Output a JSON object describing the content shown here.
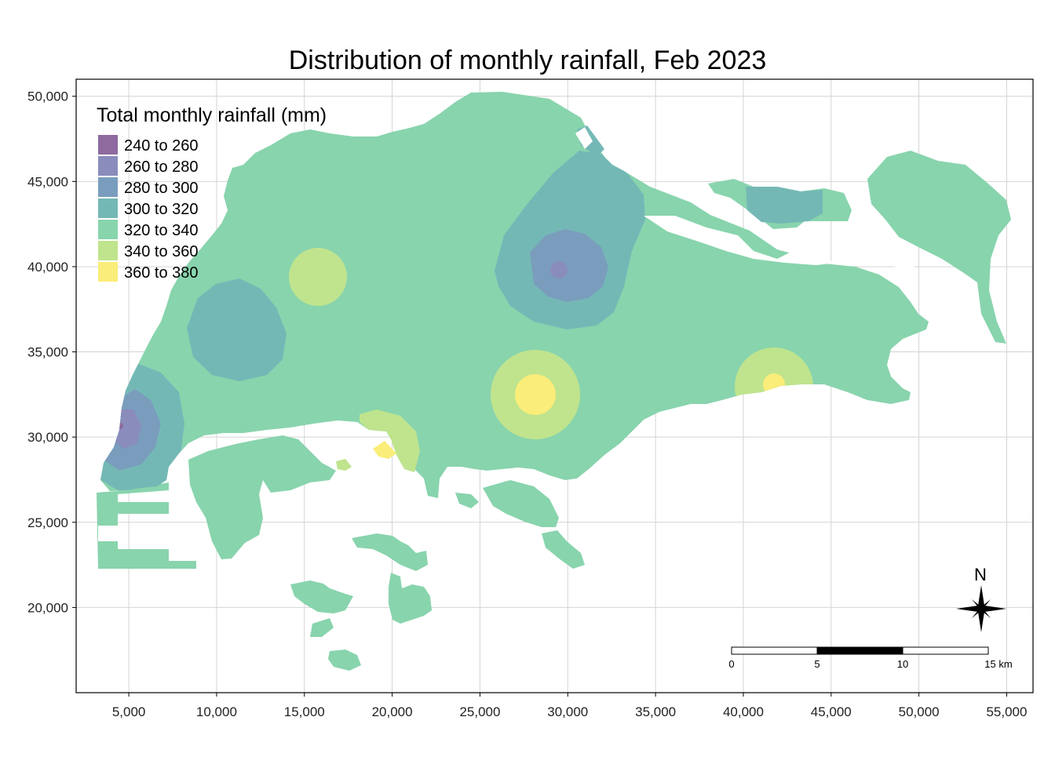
{
  "title": "Distribution of monthly rainfall, Feb 2023",
  "legend": {
    "title": "Total monthly rainfall (mm)",
    "items": [
      {
        "label": "240 to 260",
        "color": "#8e6a9e"
      },
      {
        "label": "260 to 280",
        "color": "#8a8cbc"
      },
      {
        "label": "280 to 300",
        "color": "#7a9dbd"
      },
      {
        "label": "300 to 320",
        "color": "#74b8b6"
      },
      {
        "label": "320 to 340",
        "color": "#88d4ad"
      },
      {
        "label": "340 to 360",
        "color": "#bfe48d"
      },
      {
        "label": "360 to 380",
        "color": "#fbed7a"
      }
    ]
  },
  "axes": {
    "x_ticks": [
      "5,000",
      "10,000",
      "15,000",
      "20,000",
      "25,000",
      "30,000",
      "35,000",
      "40,000",
      "45,000",
      "50,000",
      "55,000"
    ],
    "y_ticks": [
      "50,000",
      "45,000",
      "40,000",
      "35,000",
      "30,000",
      "25,000",
      "20,000"
    ]
  },
  "north_arrow": {
    "label": "N",
    "icon": "compass-rose-icon"
  },
  "scale_bar": {
    "labels": [
      "0",
      "5",
      "10",
      "15 km"
    ]
  },
  "chart_data": {
    "type": "map",
    "title": "Distribution of monthly rainfall, Feb 2023",
    "xlim": [
      2000,
      56500
    ],
    "ylim": [
      15000,
      51000
    ],
    "x_ticks": [
      5000,
      10000,
      15000,
      20000,
      25000,
      30000,
      35000,
      40000,
      45000,
      50000,
      55000
    ],
    "y_ticks": [
      20000,
      25000,
      30000,
      35000,
      40000,
      45000,
      50000
    ],
    "grid": true,
    "legend_position": "top-left",
    "classes": [
      "240 to 260",
      "260 to 280",
      "280 to 300",
      "300 to 320",
      "320 to 340",
      "340 to 360",
      "360 to 380"
    ]
  }
}
